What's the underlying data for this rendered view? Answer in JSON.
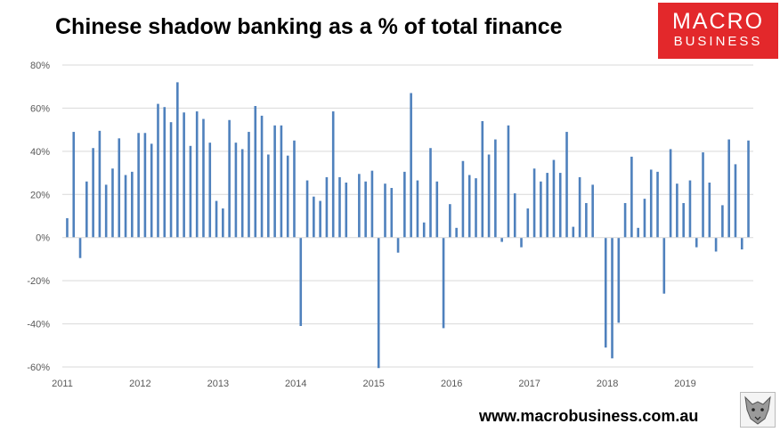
{
  "header": {
    "title": "Chinese shadow banking as a % of total finance"
  },
  "logo": {
    "line1": "MACRO",
    "line2": "BUSINESS",
    "color": "#e3282b"
  },
  "footer": {
    "url": "www.macrobusiness.com.au"
  },
  "chart_data": {
    "type": "bar",
    "title": "Chinese shadow banking as a % of total finance",
    "xlabel": "",
    "ylabel": "",
    "ylim": [
      -60,
      80
    ],
    "yticks": [
      "80%",
      "60%",
      "40%",
      "20%",
      "0%",
      "-20%",
      "-40%",
      "-60%"
    ],
    "year_labels": [
      "2011",
      "2012",
      "2013",
      "2014",
      "2015",
      "2016",
      "2017",
      "2018",
      "2019"
    ],
    "grid": true,
    "legend": "none",
    "bar_color": "#4f81bd",
    "x_start": "2011-01",
    "x_end": "2019-09",
    "frequency": "monthly",
    "series": [
      {
        "values": [
          9,
          49,
          -9.5,
          26,
          41.5,
          49.5,
          24.5,
          32,
          46,
          29,
          30.5,
          48.5,
          48.5,
          43.5,
          62,
          60.5,
          53.5,
          72,
          58,
          42.5,
          58.5,
          55,
          44,
          17,
          13.5,
          54.5,
          44,
          41,
          49,
          61,
          56.5,
          38.5,
          52,
          52,
          38,
          45,
          -41,
          26.5,
          19,
          17,
          28,
          58.5,
          28,
          25.5,
          0,
          29.5,
          26,
          31,
          -60.5,
          25,
          23,
          -7,
          30.5,
          67,
          26.5,
          7,
          41.5,
          26,
          -42,
          15.5,
          4.5,
          35.5,
          29,
          27.5,
          54,
          38.5,
          45.5,
          -2,
          52,
          20.5,
          -4.5,
          13.5,
          32,
          26,
          30,
          36,
          30,
          49,
          5,
          28,
          16,
          24.5,
          0,
          -51,
          -56,
          -39.5,
          16,
          37.5,
          4.5,
          18,
          31.5,
          30.5,
          -26,
          41,
          25,
          16,
          26.5,
          -4.5,
          39.5,
          25.5,
          -6.5,
          15,
          45.5,
          34,
          -5.5,
          45
        ]
      }
    ]
  }
}
